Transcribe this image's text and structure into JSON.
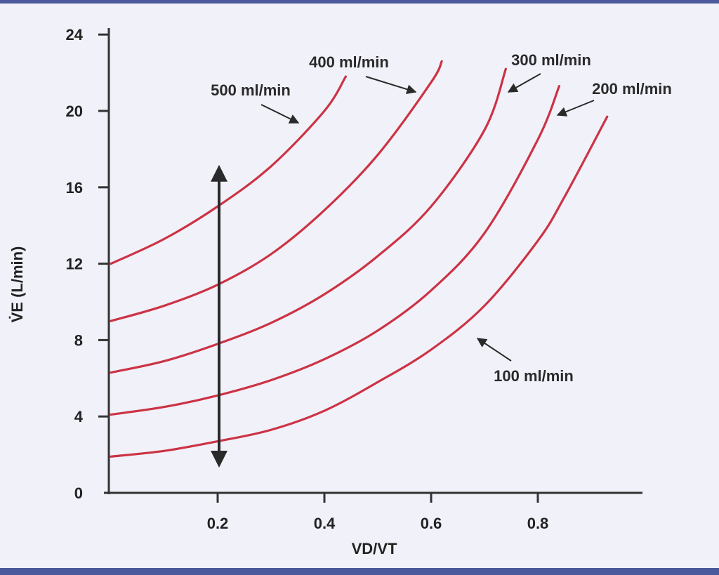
{
  "chart_data": {
    "type": "line",
    "xlabel": "VD/VT",
    "ylabel": "V̇E (L/min)",
    "xlim": [
      0,
      1.0
    ],
    "ylim": [
      0,
      24
    ],
    "x_ticks": [
      "0.2",
      "0.4",
      "0.6",
      "0.8"
    ],
    "y_ticks": [
      "0",
      "4",
      "8",
      "12",
      "16",
      "20",
      "24"
    ],
    "grid": false,
    "line_color": "#cc3344",
    "series": [
      {
        "name": "500 ml/min",
        "x": [
          0.0,
          0.1,
          0.2,
          0.3,
          0.4,
          0.44
        ],
        "y": [
          12.0,
          13.3,
          15.0,
          17.1,
          20.0,
          21.8
        ]
      },
      {
        "name": "400 ml/min",
        "x": [
          0.0,
          0.1,
          0.2,
          0.3,
          0.4,
          0.5,
          0.6,
          0.62
        ],
        "y": [
          9.0,
          9.8,
          10.9,
          12.5,
          14.8,
          17.7,
          21.5,
          22.6
        ]
      },
      {
        "name": "300 ml/min",
        "x": [
          0.0,
          0.1,
          0.2,
          0.3,
          0.4,
          0.5,
          0.6,
          0.7,
          0.74
        ],
        "y": [
          6.3,
          6.9,
          7.8,
          8.9,
          10.4,
          12.4,
          15.0,
          19.0,
          22.2
        ]
      },
      {
        "name": "200 ml/min",
        "x": [
          0.0,
          0.1,
          0.2,
          0.3,
          0.4,
          0.5,
          0.6,
          0.7,
          0.8,
          0.84
        ],
        "y": [
          4.1,
          4.5,
          5.1,
          5.9,
          7.0,
          8.5,
          10.6,
          13.6,
          18.5,
          21.3
        ]
      },
      {
        "name": "100 ml/min",
        "x": [
          0.0,
          0.1,
          0.2,
          0.3,
          0.4,
          0.5,
          0.6,
          0.7,
          0.8,
          0.85,
          0.93
        ],
        "y": [
          1.9,
          2.2,
          2.7,
          3.3,
          4.3,
          5.8,
          7.5,
          9.8,
          13.2,
          15.5,
          19.7
        ]
      }
    ],
    "labels": [
      {
        "text": "500 ml/min",
        "series": "500 ml/min"
      },
      {
        "text": "400 ml/min",
        "series": "400 ml/min"
      },
      {
        "text": "300 ml/min",
        "series": "300 ml/min"
      },
      {
        "text": "200 ml/min",
        "series": "200 ml/min"
      },
      {
        "text": "100 ml/min",
        "series": "100 ml/min"
      }
    ],
    "range_arrow": {
      "x": 0.2,
      "y_from": 1.5,
      "y_to": 17.0
    }
  }
}
